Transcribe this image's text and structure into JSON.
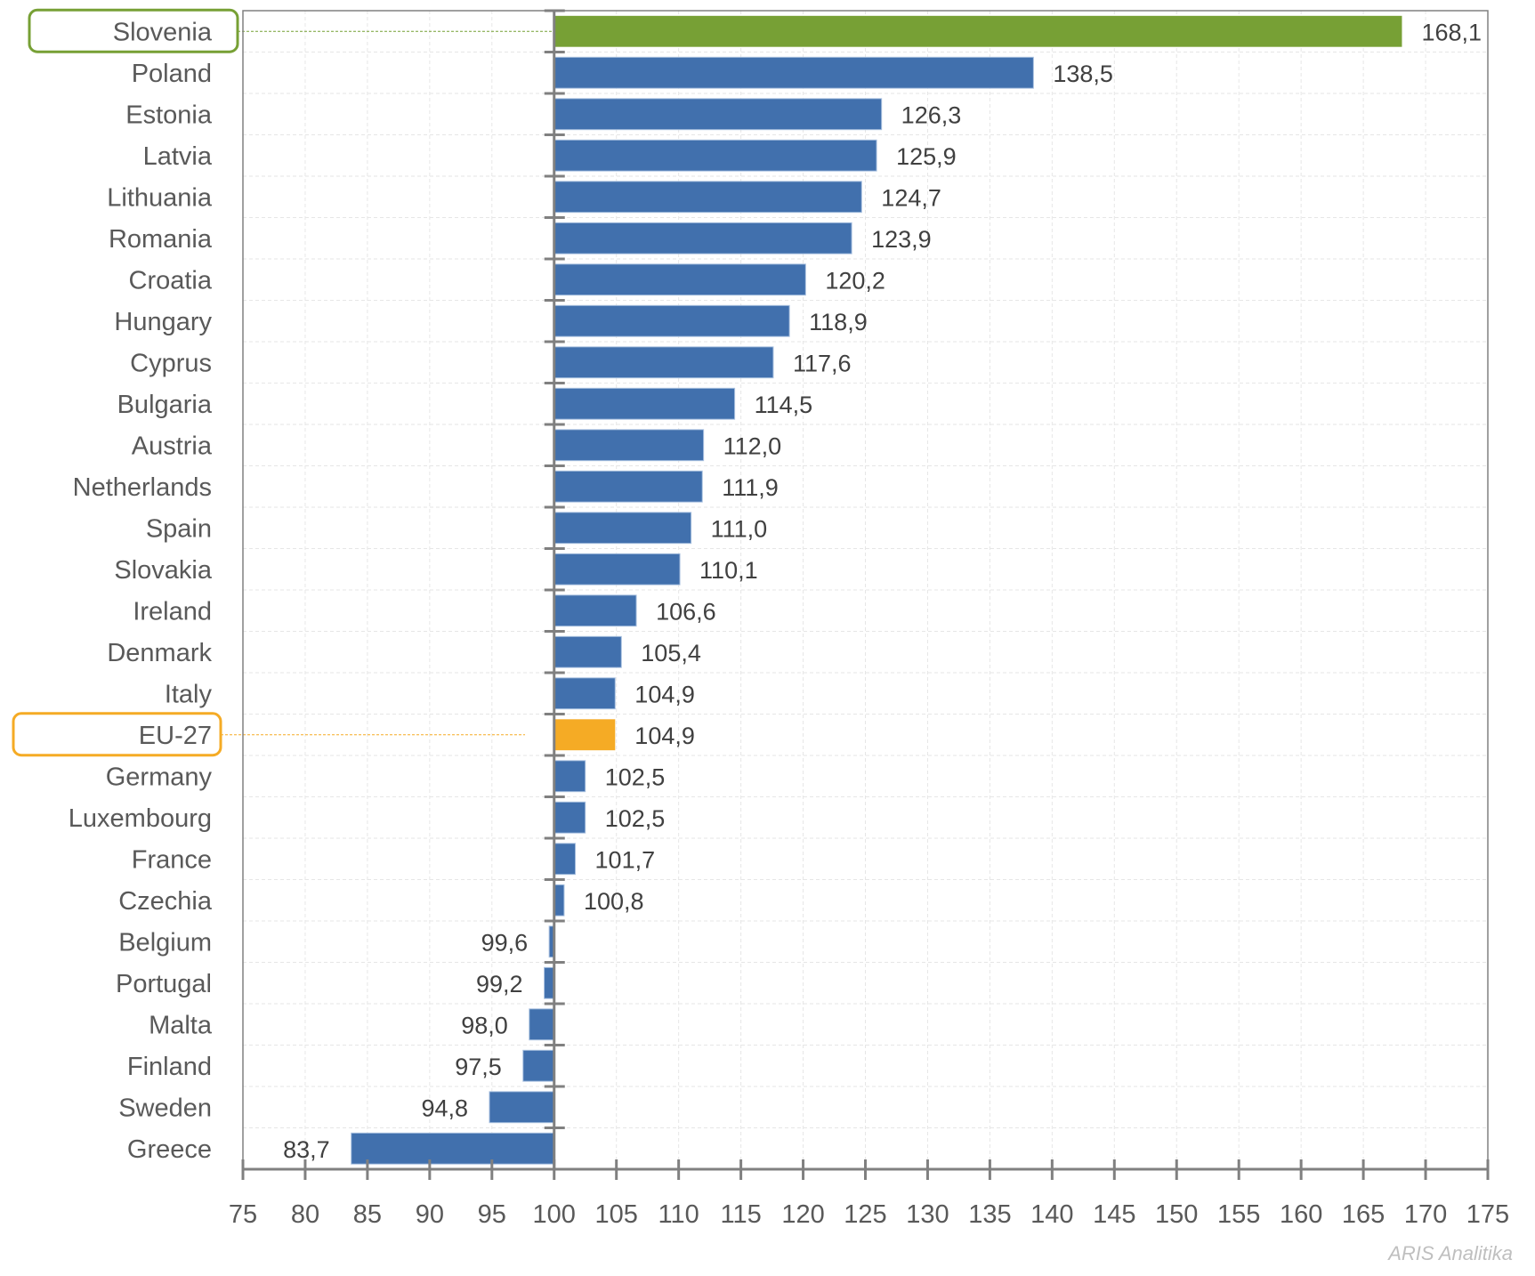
{
  "chart_data": {
    "type": "bar",
    "orientation": "horizontal",
    "title": "",
    "xlabel": "",
    "ylabel": "",
    "baseline": 100,
    "xlim": [
      75,
      175
    ],
    "x_ticks": [
      75,
      80,
      85,
      90,
      95,
      100,
      105,
      110,
      115,
      120,
      125,
      130,
      135,
      140,
      145,
      150,
      155,
      160,
      165,
      170,
      175
    ],
    "grid": true,
    "categories": [
      "Slovenia",
      "Poland",
      "Estonia",
      "Latvia",
      "Lithuania",
      "Romania",
      "Croatia",
      "Hungary",
      "Cyprus",
      "Bulgaria",
      "Austria",
      "Netherlands",
      "Spain",
      "Slovakia",
      "Ireland",
      "Denmark",
      "Italy",
      "EU-27",
      "Germany",
      "Luxembourg",
      "France",
      "Czechia",
      "Belgium",
      "Portugal",
      "Malta",
      "Finland",
      "Sweden",
      "Greece"
    ],
    "values": [
      168.1,
      138.5,
      126.3,
      125.9,
      124.7,
      123.9,
      120.2,
      118.9,
      117.6,
      114.5,
      112.0,
      111.9,
      111.0,
      110.1,
      106.6,
      105.4,
      104.9,
      104.9,
      102.5,
      102.5,
      101.7,
      100.8,
      99.6,
      99.2,
      98.0,
      97.5,
      94.8,
      83.7
    ],
    "value_labels": [
      "168,1",
      "138,5",
      "126,3",
      "125,9",
      "124,7",
      "123,9",
      "120,2",
      "118,9",
      "117,6",
      "114,5",
      "112,0",
      "111,9",
      "111,0",
      "110,1",
      "106,6",
      "105,4",
      "104,9",
      "104,9",
      "102,5",
      "102,5",
      "101,7",
      "100,8",
      "99,6",
      "99,2",
      "98,0",
      "97,5",
      "94,8",
      "83,7"
    ],
    "highlights": {
      "Slovenia": "#77a035",
      "EU-27": "#f5ab25"
    },
    "default_color": "#4170ad"
  },
  "colors": {
    "bar": "#4170ad",
    "bar_edge": "#a9c1e0",
    "highlight_green": "#77a035",
    "highlight_orange": "#f5ab25",
    "axis": "#808080",
    "grid": "#e6e6e6"
  },
  "watermark": "ARIS Analitika"
}
